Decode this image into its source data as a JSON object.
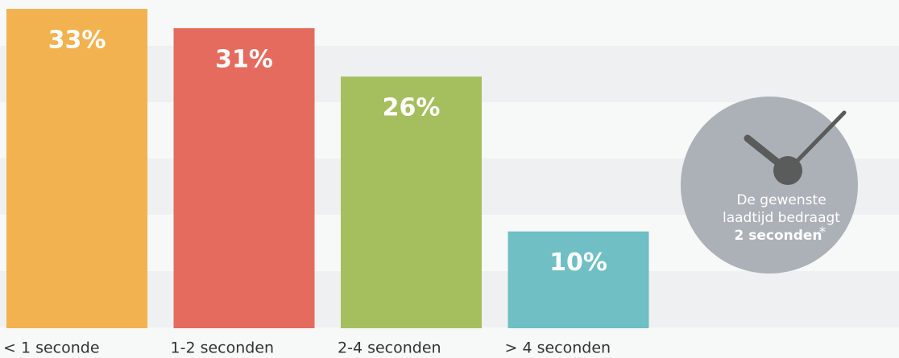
{
  "chart_data": {
    "type": "bar",
    "categories": [
      "< 1 seconde",
      "1-2 seconden",
      "2-4 seconden",
      "> 4 seconden"
    ],
    "values": [
      33,
      31,
      26,
      10
    ],
    "value_labels": [
      "33%",
      "31%",
      "26%",
      "10%"
    ],
    "colors": [
      "#f2b24f",
      "#e46b5d",
      "#a5bf5f",
      "#6fbfc4"
    ],
    "ylim": [
      0,
      33
    ],
    "annotation": {
      "lines": [
        "De gewenste",
        "laadtijd bedraagt"
      ],
      "emphasis": "2 seconden",
      "mark": "*"
    }
  }
}
